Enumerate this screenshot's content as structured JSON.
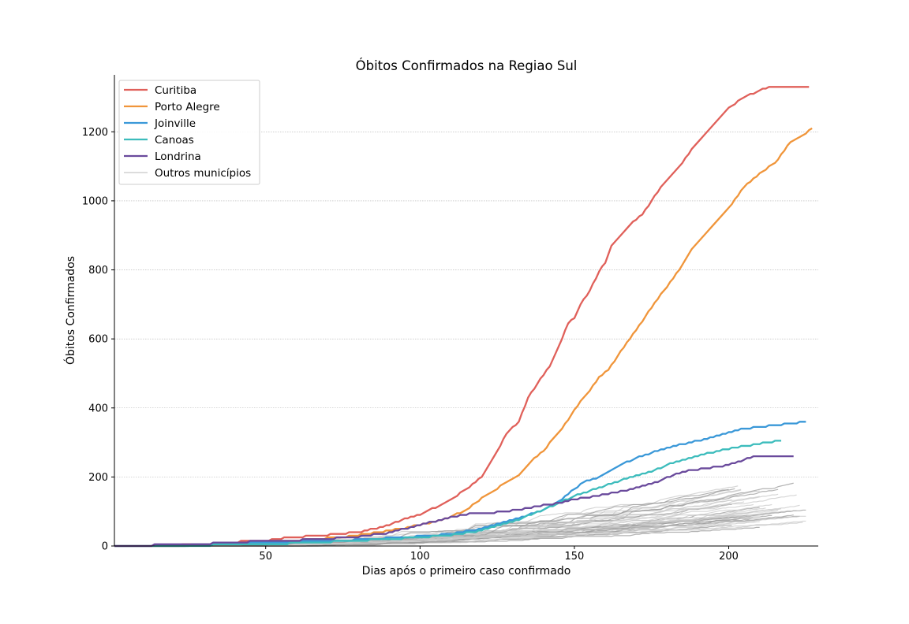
{
  "chart_data": {
    "type": "line",
    "title": "Óbitos Confirmados na Regiao Sul",
    "xlabel": "Dias após o primeiro caso confirmado",
    "ylabel": "Óbitos Confirmados",
    "xlim": [
      1,
      229
    ],
    "ylim": [
      0,
      1365
    ],
    "xticks": [
      50,
      100,
      150,
      200
    ],
    "yticks": [
      0,
      200,
      400,
      600,
      800,
      1000,
      1200
    ],
    "grid": "horizontal dotted",
    "legend_position": "top-left",
    "background_series": {
      "name": "Outros municípios",
      "color": "#c0c0c0",
      "count": 40
    },
    "series": [
      {
        "name": "Curitiba",
        "color": "#e0605a",
        "points": [
          [
            1,
            0
          ],
          [
            20,
            2
          ],
          [
            30,
            4
          ],
          [
            40,
            12
          ],
          [
            50,
            16
          ],
          [
            55,
            22
          ],
          [
            60,
            26
          ],
          [
            70,
            32
          ],
          [
            80,
            40
          ],
          [
            85,
            50
          ],
          [
            90,
            62
          ],
          [
            95,
            78
          ],
          [
            100,
            92
          ],
          [
            105,
            112
          ],
          [
            110,
            135
          ],
          [
            115,
            165
          ],
          [
            120,
            200
          ],
          [
            125,
            275
          ],
          [
            128,
            325
          ],
          [
            132,
            360
          ],
          [
            135,
            430
          ],
          [
            138,
            470
          ],
          [
            142,
            520
          ],
          [
            145,
            580
          ],
          [
            148,
            645
          ],
          [
            150,
            660
          ],
          [
            152,
            700
          ],
          [
            155,
            740
          ],
          [
            158,
            795
          ],
          [
            160,
            820
          ],
          [
            162,
            870
          ],
          [
            165,
            900
          ],
          [
            168,
            930
          ],
          [
            172,
            960
          ],
          [
            175,
            1000
          ],
          [
            178,
            1040
          ],
          [
            182,
            1080
          ],
          [
            185,
            1110
          ],
          [
            188,
            1150
          ],
          [
            192,
            1190
          ],
          [
            195,
            1220
          ],
          [
            200,
            1270
          ],
          [
            205,
            1300
          ],
          [
            210,
            1320
          ],
          [
            213,
            1330
          ],
          [
            226,
            1330
          ]
        ]
      },
      {
        "name": "Porto Alegre",
        "color": "#f0953a",
        "points": [
          [
            1,
            0
          ],
          [
            20,
            1
          ],
          [
            40,
            8
          ],
          [
            60,
            16
          ],
          [
            75,
            26
          ],
          [
            85,
            38
          ],
          [
            95,
            52
          ],
          [
            100,
            62
          ],
          [
            105,
            70
          ],
          [
            110,
            85
          ],
          [
            115,
            105
          ],
          [
            120,
            138
          ],
          [
            124,
            160
          ],
          [
            128,
            185
          ],
          [
            132,
            205
          ],
          [
            136,
            245
          ],
          [
            140,
            275
          ],
          [
            143,
            310
          ],
          [
            146,
            340
          ],
          [
            149,
            380
          ],
          [
            152,
            420
          ],
          [
            155,
            450
          ],
          [
            158,
            490
          ],
          [
            161,
            510
          ],
          [
            164,
            550
          ],
          [
            167,
            590
          ],
          [
            170,
            625
          ],
          [
            173,
            665
          ],
          [
            176,
            705
          ],
          [
            180,
            750
          ],
          [
            184,
            800
          ],
          [
            188,
            860
          ],
          [
            192,
            900
          ],
          [
            196,
            940
          ],
          [
            200,
            980
          ],
          [
            205,
            1040
          ],
          [
            210,
            1080
          ],
          [
            215,
            1110
          ],
          [
            220,
            1170
          ],
          [
            224,
            1190
          ],
          [
            227,
            1210
          ]
        ]
      },
      {
        "name": "Joinville",
        "color": "#3a98d8",
        "points": [
          [
            1,
            0
          ],
          [
            30,
            3
          ],
          [
            60,
            12
          ],
          [
            80,
            18
          ],
          [
            100,
            28
          ],
          [
            110,
            35
          ],
          [
            120,
            50
          ],
          [
            130,
            75
          ],
          [
            140,
            105
          ],
          [
            145,
            130
          ],
          [
            150,
            165
          ],
          [
            153,
            185
          ],
          [
            158,
            200
          ],
          [
            162,
            220
          ],
          [
            165,
            235
          ],
          [
            170,
            255
          ],
          [
            175,
            270
          ],
          [
            180,
            285
          ],
          [
            185,
            295
          ],
          [
            190,
            305
          ],
          [
            195,
            315
          ],
          [
            200,
            330
          ],
          [
            205,
            340
          ],
          [
            210,
            345
          ],
          [
            215,
            350
          ],
          [
            220,
            355
          ],
          [
            225,
            360
          ]
        ]
      },
      {
        "name": "Canoas",
        "color": "#3cbcbc",
        "points": [
          [
            1,
            0
          ],
          [
            30,
            2
          ],
          [
            60,
            8
          ],
          [
            80,
            16
          ],
          [
            100,
            25
          ],
          [
            110,
            32
          ],
          [
            120,
            45
          ],
          [
            130,
            70
          ],
          [
            140,
            105
          ],
          [
            145,
            125
          ],
          [
            150,
            145
          ],
          [
            155,
            160
          ],
          [
            160,
            175
          ],
          [
            165,
            190
          ],
          [
            170,
            205
          ],
          [
            175,
            215
          ],
          [
            180,
            235
          ],
          [
            185,
            250
          ],
          [
            190,
            262
          ],
          [
            195,
            272
          ],
          [
            200,
            282
          ],
          [
            205,
            290
          ],
          [
            210,
            296
          ],
          [
            214,
            302
          ],
          [
            217,
            305
          ]
        ]
      },
      {
        "name": "Londrina",
        "color": "#6a4a9c",
        "points": [
          [
            1,
            0
          ],
          [
            30,
            6
          ],
          [
            40,
            11
          ],
          [
            50,
            14
          ],
          [
            60,
            17
          ],
          [
            70,
            21
          ],
          [
            80,
            27
          ],
          [
            90,
            38
          ],
          [
            95,
            50
          ],
          [
            100,
            62
          ],
          [
            105,
            72
          ],
          [
            110,
            84
          ],
          [
            115,
            92
          ],
          [
            120,
            95
          ],
          [
            125,
            98
          ],
          [
            130,
            103
          ],
          [
            135,
            110
          ],
          [
            140,
            118
          ],
          [
            145,
            125
          ],
          [
            150,
            135
          ],
          [
            155,
            142
          ],
          [
            160,
            150
          ],
          [
            165,
            158
          ],
          [
            170,
            168
          ],
          [
            175,
            180
          ],
          [
            180,
            198
          ],
          [
            185,
            215
          ],
          [
            190,
            222
          ],
          [
            195,
            228
          ],
          [
            200,
            235
          ],
          [
            205,
            250
          ],
          [
            208,
            258
          ],
          [
            215,
            258
          ],
          [
            221,
            258
          ]
        ]
      }
    ]
  }
}
